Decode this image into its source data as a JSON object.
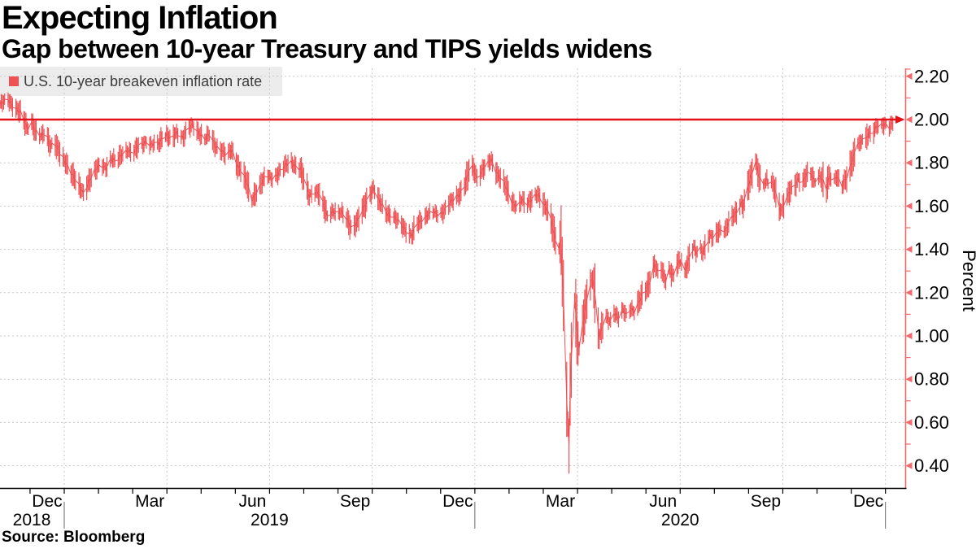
{
  "header": {
    "title": "Expecting Inflation",
    "subtitle": "Gap between 10-year Treasury and TIPS yields widens"
  },
  "legend": {
    "label": "U.S. 10-year breakeven inflation rate"
  },
  "source": {
    "text": "Source: Bloomberg"
  },
  "colors": {
    "series": "#ee5053",
    "reference_line": "#e41117",
    "y_axis": "#f2696b",
    "grid": "#c9c9c9",
    "legend_bg": "#ececec",
    "x_axis": "#000000",
    "year_divider": "#666666",
    "text": "#000000"
  },
  "chart_data": {
    "type": "line",
    "series_name": "U.S. 10-year breakeven inflation rate",
    "ylabel": "Percent",
    "ylim": [
      0.3,
      2.24
    ],
    "grid": true,
    "legend_position": "top-left",
    "reference_line_value": 2.0,
    "y_ticks": [
      2.2,
      2.0,
      1.8,
      1.6,
      1.4,
      1.2,
      1.0,
      0.8,
      0.6,
      0.4
    ],
    "y_tick_labels": [
      "2.20",
      "2.00",
      "1.80",
      "1.60",
      "1.40",
      "1.20",
      "1.00",
      "0.80",
      "0.60",
      "0.40"
    ],
    "x_month_labels": [
      {
        "label": "Dec",
        "mid_month_index": -0.5
      },
      {
        "label": "Mar",
        "mid_month_index": 2.5
      },
      {
        "label": "Jun",
        "mid_month_index": 5.5
      },
      {
        "label": "Sep",
        "mid_month_index": 8.5
      },
      {
        "label": "Dec",
        "mid_month_index": 11.5
      },
      {
        "label": "Mar",
        "mid_month_index": 14.5
      },
      {
        "label": "Jun",
        "mid_month_index": 17.5
      },
      {
        "label": "Sep",
        "mid_month_index": 20.5
      },
      {
        "label": "Dec",
        "mid_month_index": 23.5
      }
    ],
    "x_year_labels": [
      {
        "label": "2018",
        "center_month_index": -0.95
      },
      {
        "label": "2019",
        "center_month_index": 6.0
      },
      {
        "label": "2020",
        "center_month_index": 18.0
      }
    ],
    "year_divider_month_indices": [
      0,
      12,
      24
    ],
    "quarter_gridline_month_indices": [
      0,
      3,
      6,
      9,
      12,
      15,
      18,
      21,
      24
    ],
    "points": [
      [
        "2018-11-05",
        2.07
      ],
      [
        "2018-11-12",
        2.09
      ],
      [
        "2018-11-18",
        2.06
      ],
      [
        "2018-11-23",
        2.03
      ],
      [
        "2018-11-29",
        1.96
      ],
      [
        "2018-12-03",
        1.99
      ],
      [
        "2018-12-06",
        1.95
      ],
      [
        "2018-12-11",
        1.92
      ],
      [
        "2018-12-15",
        1.94
      ],
      [
        "2018-12-20",
        1.88
      ],
      [
        "2018-12-23",
        1.9
      ],
      [
        "2018-12-29",
        1.83
      ],
      [
        "2019-01-04",
        1.79
      ],
      [
        "2019-01-09",
        1.74
      ],
      [
        "2019-01-14",
        1.69
      ],
      [
        "2019-01-18",
        1.66
      ],
      [
        "2019-01-23",
        1.72
      ],
      [
        "2019-01-28",
        1.76
      ],
      [
        "2019-02-02",
        1.79
      ],
      [
        "2019-02-07",
        1.78
      ],
      [
        "2019-02-12",
        1.82
      ],
      [
        "2019-02-16",
        1.8
      ],
      [
        "2019-02-21",
        1.84
      ],
      [
        "2019-02-26",
        1.86
      ],
      [
        "2019-03-03",
        1.84
      ],
      [
        "2019-03-08",
        1.88
      ],
      [
        "2019-03-15",
        1.9
      ],
      [
        "2019-03-19",
        1.88
      ],
      [
        "2019-03-26",
        1.89
      ],
      [
        "2019-03-29",
        1.92
      ],
      [
        "2019-04-02",
        1.93
      ],
      [
        "2019-04-06",
        1.9
      ],
      [
        "2019-04-11",
        1.94
      ],
      [
        "2019-04-17",
        1.92
      ],
      [
        "2019-04-20",
        1.95
      ],
      [
        "2019-04-25",
        1.97
      ],
      [
        "2019-05-01",
        1.94
      ],
      [
        "2019-05-06",
        1.91
      ],
      [
        "2019-05-10",
        1.93
      ],
      [
        "2019-05-15",
        1.88
      ],
      [
        "2019-05-21",
        1.86
      ],
      [
        "2019-05-25",
        1.83
      ],
      [
        "2019-05-30",
        1.86
      ],
      [
        "2019-06-04",
        1.79
      ],
      [
        "2019-06-08",
        1.76
      ],
      [
        "2019-06-12",
        1.71
      ],
      [
        "2019-06-17",
        1.63
      ],
      [
        "2019-06-21",
        1.67
      ],
      [
        "2019-06-26",
        1.71
      ],
      [
        "2019-06-30",
        1.74
      ],
      [
        "2019-07-05",
        1.73
      ],
      [
        "2019-07-10",
        1.75
      ],
      [
        "2019-07-16",
        1.78
      ],
      [
        "2019-07-21",
        1.81
      ],
      [
        "2019-07-25",
        1.79
      ],
      [
        "2019-07-30",
        1.77
      ],
      [
        "2019-08-03",
        1.71
      ],
      [
        "2019-08-07",
        1.65
      ],
      [
        "2019-08-11",
        1.67
      ],
      [
        "2019-08-15",
        1.66
      ],
      [
        "2019-08-19",
        1.61
      ],
      [
        "2019-08-23",
        1.56
      ],
      [
        "2019-08-28",
        1.58
      ],
      [
        "2019-09-01",
        1.56
      ],
      [
        "2019-09-05",
        1.57
      ],
      [
        "2019-09-10",
        1.54
      ],
      [
        "2019-09-14",
        1.49
      ],
      [
        "2019-09-19",
        1.53
      ],
      [
        "2019-09-24",
        1.59
      ],
      [
        "2019-09-28",
        1.64
      ],
      [
        "2019-10-03",
        1.68
      ],
      [
        "2019-10-08",
        1.62
      ],
      [
        "2019-10-12",
        1.6
      ],
      [
        "2019-10-15",
        1.57
      ],
      [
        "2019-10-20",
        1.55
      ],
      [
        "2019-10-25",
        1.53
      ],
      [
        "2019-10-29",
        1.51
      ],
      [
        "2019-11-01",
        1.49
      ],
      [
        "2019-11-06",
        1.46
      ],
      [
        "2019-11-10",
        1.51
      ],
      [
        "2019-11-15",
        1.54
      ],
      [
        "2019-11-20",
        1.56
      ],
      [
        "2019-11-25",
        1.57
      ],
      [
        "2019-11-30",
        1.56
      ],
      [
        "2019-12-05",
        1.58
      ],
      [
        "2019-12-09",
        1.61
      ],
      [
        "2019-12-14",
        1.63
      ],
      [
        "2019-12-19",
        1.66
      ],
      [
        "2019-12-23",
        1.7
      ],
      [
        "2019-12-26",
        1.74
      ],
      [
        "2019-12-28",
        1.79
      ],
      [
        "2020-01-01",
        1.76
      ],
      [
        "2020-01-03",
        1.73
      ],
      [
        "2020-01-08",
        1.77
      ],
      [
        "2020-01-12",
        1.79
      ],
      [
        "2020-01-16",
        1.81
      ],
      [
        "2020-01-19",
        1.77
      ],
      [
        "2020-01-23",
        1.74
      ],
      [
        "2020-01-26",
        1.72
      ],
      [
        "2020-01-30",
        1.67
      ],
      [
        "2020-02-03",
        1.62
      ],
      [
        "2020-02-08",
        1.6
      ],
      [
        "2020-02-12",
        1.63
      ],
      [
        "2020-02-16",
        1.6
      ],
      [
        "2020-02-19",
        1.62
      ],
      [
        "2020-02-23",
        1.65
      ],
      [
        "2020-02-26",
        1.66
      ],
      [
        "2020-03-01",
        1.62
      ],
      [
        "2020-03-04",
        1.59
      ],
      [
        "2020-03-08",
        1.56
      ],
      [
        "2020-03-11",
        1.49
      ],
      [
        "2020-03-14",
        1.43
      ],
      [
        "2020-03-16",
        1.41
      ],
      [
        "2020-03-18",
        1.44
      ],
      [
        "2020-03-19",
        1.3
      ],
      [
        "2020-03-21",
        1.05
      ],
      [
        "2020-03-22",
        0.8
      ],
      [
        "2020-03-24",
        0.6
      ],
      [
        "2020-03-25",
        0.49
      ],
      [
        "2020-03-26",
        0.75
      ],
      [
        "2020-03-28",
        1.05
      ],
      [
        "2020-03-29",
        1.24
      ],
      [
        "2020-03-31",
        1.1
      ],
      [
        "2020-04-02",
        0.97
      ],
      [
        "2020-04-03",
        0.93
      ],
      [
        "2020-04-05",
        1.02
      ],
      [
        "2020-04-08",
        1.1
      ],
      [
        "2020-04-10",
        1.18
      ],
      [
        "2020-04-13",
        1.24
      ],
      [
        "2020-04-15",
        1.27
      ],
      [
        "2020-04-17",
        1.19
      ],
      [
        "2020-04-19",
        1.08
      ],
      [
        "2020-04-21",
        0.99
      ],
      [
        "2020-04-24",
        1.05
      ],
      [
        "2020-04-27",
        1.09
      ],
      [
        "2020-05-01",
        1.07
      ],
      [
        "2020-05-04",
        1.11
      ],
      [
        "2020-05-08",
        1.08
      ],
      [
        "2020-05-12",
        1.12
      ],
      [
        "2020-05-15",
        1.1
      ],
      [
        "2020-05-19",
        1.13
      ],
      [
        "2020-05-22",
        1.11
      ],
      [
        "2020-05-26",
        1.15
      ],
      [
        "2020-05-29",
        1.19
      ],
      [
        "2020-06-02",
        1.22
      ],
      [
        "2020-06-06",
        1.27
      ],
      [
        "2020-06-09",
        1.33
      ],
      [
        "2020-06-12",
        1.29
      ],
      [
        "2020-06-15",
        1.31
      ],
      [
        "2020-06-19",
        1.26
      ],
      [
        "2020-06-22",
        1.31
      ],
      [
        "2020-06-26",
        1.27
      ],
      [
        "2020-06-29",
        1.33
      ],
      [
        "2020-07-03",
        1.35
      ],
      [
        "2020-07-06",
        1.3
      ],
      [
        "2020-07-10",
        1.36
      ],
      [
        "2020-07-14",
        1.41
      ],
      [
        "2020-07-16",
        1.38
      ],
      [
        "2020-07-19",
        1.41
      ],
      [
        "2020-07-22",
        1.39
      ],
      [
        "2020-07-26",
        1.44
      ],
      [
        "2020-07-29",
        1.46
      ],
      [
        "2020-08-01",
        1.44
      ],
      [
        "2020-08-04",
        1.48
      ],
      [
        "2020-08-08",
        1.5
      ],
      [
        "2020-08-11",
        1.49
      ],
      [
        "2020-08-15",
        1.53
      ],
      [
        "2020-08-18",
        1.55
      ],
      [
        "2020-08-22",
        1.58
      ],
      [
        "2020-08-25",
        1.62
      ],
      [
        "2020-08-27",
        1.6
      ],
      [
        "2020-08-30",
        1.67
      ],
      [
        "2020-09-02",
        1.72
      ],
      [
        "2020-09-05",
        1.77
      ],
      [
        "2020-09-07",
        1.81
      ],
      [
        "2020-09-09",
        1.76
      ],
      [
        "2020-09-11",
        1.73
      ],
      [
        "2020-09-14",
        1.7
      ],
      [
        "2020-09-17",
        1.72
      ],
      [
        "2020-09-19",
        1.69
      ],
      [
        "2020-09-21",
        1.71
      ],
      [
        "2020-09-24",
        1.68
      ],
      [
        "2020-09-26",
        1.64
      ],
      [
        "2020-09-28",
        1.6
      ],
      [
        "2020-09-30",
        1.58
      ],
      [
        "2020-10-03",
        1.62
      ],
      [
        "2020-10-06",
        1.65
      ],
      [
        "2020-10-09",
        1.68
      ],
      [
        "2020-10-12",
        1.7
      ],
      [
        "2020-10-15",
        1.73
      ],
      [
        "2020-10-18",
        1.7
      ],
      [
        "2020-10-21",
        1.73
      ],
      [
        "2020-10-25",
        1.76
      ],
      [
        "2020-10-28",
        1.73
      ],
      [
        "2020-10-31",
        1.72
      ],
      [
        "2020-11-03",
        1.74
      ],
      [
        "2020-11-06",
        1.71
      ],
      [
        "2020-11-08",
        1.64
      ],
      [
        "2020-11-10",
        1.71
      ],
      [
        "2020-11-12",
        1.74
      ],
      [
        "2020-11-15",
        1.72
      ],
      [
        "2020-11-18",
        1.74
      ],
      [
        "2020-11-21",
        1.71
      ],
      [
        "2020-11-23",
        1.69
      ],
      [
        "2020-11-25",
        1.71
      ],
      [
        "2020-11-28",
        1.74
      ],
      [
        "2020-11-30",
        1.78
      ],
      [
        "2020-12-03",
        1.83
      ],
      [
        "2020-12-05",
        1.86
      ],
      [
        "2020-12-07",
        1.9
      ],
      [
        "2020-12-09",
        1.88
      ],
      [
        "2020-12-11",
        1.91
      ],
      [
        "2020-12-13",
        1.89
      ],
      [
        "2020-12-15",
        1.92
      ],
      [
        "2020-12-17",
        1.94
      ],
      [
        "2020-12-19",
        1.93
      ],
      [
        "2020-12-21",
        1.95
      ],
      [
        "2020-12-24",
        1.97
      ],
      [
        "2020-12-26",
        1.96
      ],
      [
        "2020-12-29",
        1.97
      ],
      [
        "2021-01-01",
        1.98
      ],
      [
        "2021-01-04",
        1.97
      ],
      [
        "2021-01-07",
        1.99
      ]
    ]
  }
}
